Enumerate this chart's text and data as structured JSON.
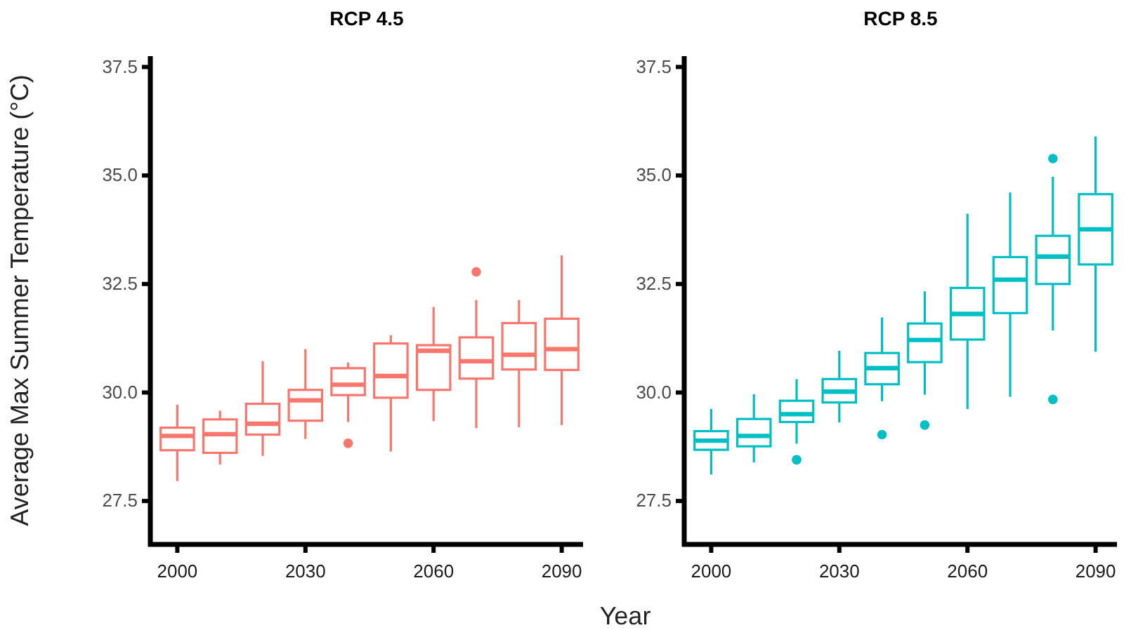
{
  "chart_data": [
    {
      "type": "box",
      "title": "RCP 4.5",
      "xlabel": "Year",
      "ylabel": "Average Max Summer Temperature (°C)",
      "categories": [
        "2000",
        null,
        null,
        "2030",
        null,
        null,
        "2060",
        null,
        null,
        "2090"
      ],
      "ylim": [
        26.5,
        37.75
      ],
      "yticks": [
        {
          "value": 27.5,
          "label": "27.5"
        },
        {
          "value": 30,
          "label": "30.0"
        },
        {
          "value": 32.5,
          "label": "32.5"
        },
        {
          "value": 35,
          "label": "35.0"
        },
        {
          "value": 37.5,
          "label": "37.5"
        }
      ],
      "grid": false,
      "series": [
        {
          "color": "#f8766d",
          "boxes": [
            {
              "low": 27.96,
              "q1": 28.67,
              "median": 29.0,
              "q3": 29.19,
              "high": 29.72
            },
            {
              "low": 28.34,
              "q1": 28.61,
              "median": 29.04,
              "q3": 29.38,
              "high": 29.58
            },
            {
              "low": 28.54,
              "q1": 29.03,
              "median": 29.28,
              "q3": 29.74,
              "high": 30.72
            },
            {
              "low": 28.93,
              "q1": 29.35,
              "median": 29.82,
              "q3": 30.06,
              "high": 31.0
            },
            {
              "low": 29.32,
              "q1": 29.94,
              "median": 30.18,
              "q3": 30.56,
              "high": 30.69,
              "outliers": [
                28.83
              ]
            },
            {
              "low": 28.64,
              "q1": 29.88,
              "median": 30.38,
              "q3": 31.13,
              "high": 31.32
            },
            {
              "low": 29.34,
              "q1": 30.06,
              "median": 30.96,
              "q3": 31.09,
              "high": 31.97
            },
            {
              "low": 29.18,
              "q1": 30.32,
              "median": 30.72,
              "q3": 31.27,
              "high": 32.13,
              "outliers": [
                32.78
              ]
            },
            {
              "low": 29.2,
              "q1": 30.53,
              "median": 30.87,
              "q3": 31.6,
              "high": 32.13
            },
            {
              "low": 29.25,
              "q1": 30.52,
              "median": 31.0,
              "q3": 31.7,
              "high": 33.16
            }
          ]
        }
      ]
    },
    {
      "type": "box",
      "title": "RCP 8.5",
      "categories": [
        "2000",
        null,
        null,
        "2030",
        null,
        null,
        "2060",
        null,
        null,
        "2090"
      ],
      "ylim": [
        26.5,
        37.75
      ],
      "yticks": [
        {
          "value": 27.5,
          "label": "27.5"
        },
        {
          "value": 30,
          "label": "30.0"
        },
        {
          "value": 32.5,
          "label": "32.5"
        },
        {
          "value": 35,
          "label": "35.0"
        },
        {
          "value": 37.5,
          "label": "37.5"
        }
      ],
      "grid": false,
      "series": [
        {
          "color": "#00bfc4",
          "boxes": [
            {
              "low": 28.11,
              "q1": 28.68,
              "median": 28.89,
              "q3": 29.11,
              "high": 29.62
            },
            {
              "low": 28.39,
              "q1": 28.76,
              "median": 29.0,
              "q3": 29.39,
              "high": 29.96
            },
            {
              "low": 28.82,
              "q1": 29.32,
              "median": 29.5,
              "q3": 29.81,
              "high": 30.31,
              "outliers": [
                28.45
              ]
            },
            {
              "low": 29.31,
              "q1": 29.77,
              "median": 30.02,
              "q3": 30.31,
              "high": 30.96
            },
            {
              "low": 29.8,
              "q1": 30.19,
              "median": 30.56,
              "q3": 30.91,
              "high": 31.73,
              "outliers": [
                29.03
              ]
            },
            {
              "low": 29.95,
              "q1": 30.7,
              "median": 31.21,
              "q3": 31.59,
              "high": 32.33,
              "outliers": [
                29.25
              ]
            },
            {
              "low": 29.62,
              "q1": 31.22,
              "median": 31.81,
              "q3": 32.41,
              "high": 34.12
            },
            {
              "low": 29.9,
              "q1": 31.83,
              "median": 32.6,
              "q3": 33.12,
              "high": 34.61
            },
            {
              "low": 31.43,
              "q1": 32.5,
              "median": 33.13,
              "q3": 33.61,
              "high": 34.97,
              "outliers": [
                35.39,
                29.84
              ]
            },
            {
              "low": 30.94,
              "q1": 32.95,
              "median": 33.76,
              "q3": 34.57,
              "high": 35.9
            }
          ]
        }
      ]
    }
  ]
}
